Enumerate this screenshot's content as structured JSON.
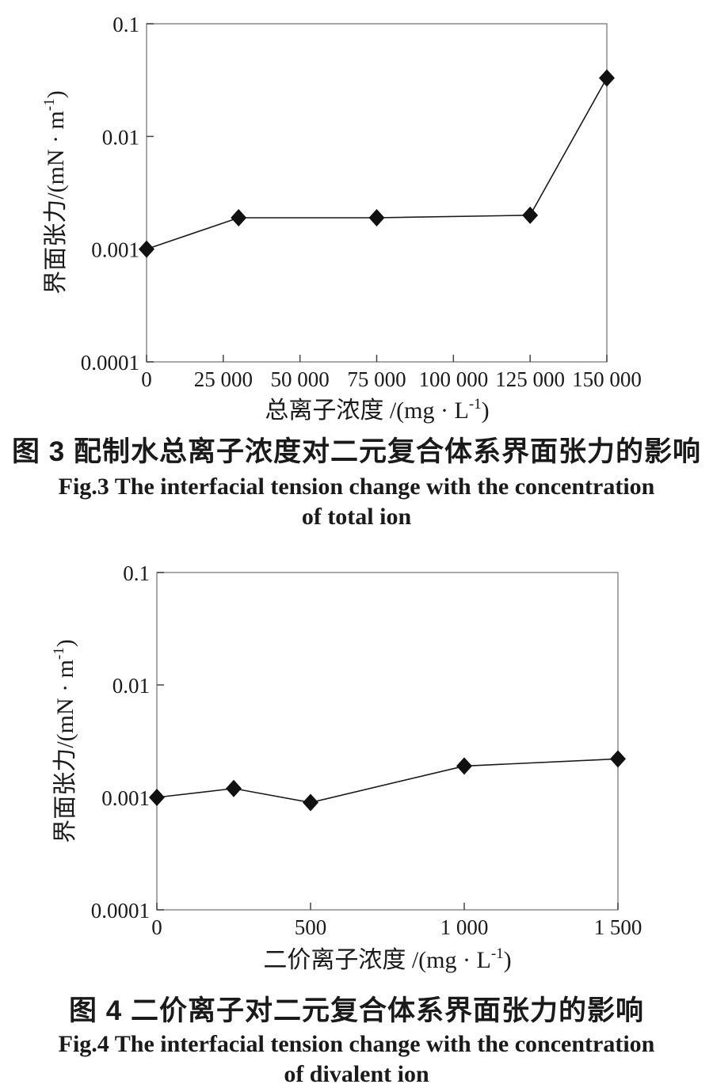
{
  "figure3": {
    "caption_zh": "图 3  配制水总离子浓度对二元复合体系界面张力的影响",
    "caption_en_line1": "Fig.3 The interfacial tension change with the concentration",
    "caption_en_line2": "of total ion"
  },
  "figure4": {
    "caption_zh": "图 4  二价离子对二元复合体系界面张力的影响",
    "caption_en_line1": "Fig.4 The interfacial tension change with the concentration",
    "caption_en_line2": "of divalent ion"
  },
  "chart_data": [
    {
      "type": "line",
      "title": "",
      "x": [
        0,
        30000,
        75000,
        125000,
        150000
      ],
      "y": [
        0.001,
        0.0019,
        0.0019,
        0.002,
        0.033
      ],
      "xlim": [
        0,
        150000
      ],
      "ylim": [
        0.0001,
        0.1
      ],
      "y_scale": "log",
      "x_tick_values": [
        0,
        25000,
        50000,
        75000,
        100000,
        125000,
        150000
      ],
      "x_tick_labels": [
        "0",
        "25 000",
        "50 000",
        "75 000",
        "100 000",
        "125 000",
        "150 000"
      ],
      "y_tick_values": [
        0.1,
        0.01,
        0.001,
        0.0001
      ],
      "y_tick_labels": [
        "0.1",
        "0.01",
        "0.001",
        "0.0001"
      ],
      "xlabel": {
        "pre": "总离子浓度 /(mg · L",
        "sup": "-1",
        "post": ")"
      },
      "ylabel": {
        "pre": "界面张力/(mN · m",
        "sup": "-1",
        "post": ")"
      },
      "marker": "diamond",
      "grid": false,
      "legend": "none",
      "line_color": "#1a1a1a",
      "marker_color": "#111111",
      "frame_color": "#8c8c8c"
    },
    {
      "type": "line",
      "title": "",
      "x": [
        0,
        250,
        500,
        1000,
        1500
      ],
      "y": [
        0.001,
        0.0012,
        0.0009,
        0.0019,
        0.0022
      ],
      "xlim": [
        0,
        1500
      ],
      "ylim": [
        0.0001,
        0.1
      ],
      "y_scale": "log",
      "x_tick_values": [
        0,
        500,
        1000,
        1500
      ],
      "x_tick_labels": [
        "0",
        "500",
        "1 000",
        "1 500"
      ],
      "y_tick_values": [
        0.1,
        0.01,
        0.001,
        0.0001
      ],
      "y_tick_labels": [
        "0.1",
        "0.01",
        "0.001",
        "0.0001"
      ],
      "xlabel": {
        "pre": "二价离子浓度 /(mg · L",
        "sup": "-1",
        "post": ")"
      },
      "ylabel": {
        "pre": "界面张力/(mN · m",
        "sup": "-1",
        "post": ")"
      },
      "marker": "diamond",
      "grid": false,
      "legend": "none",
      "line_color": "#1a1a1a",
      "marker_color": "#111111",
      "frame_color": "#8c8c8c"
    }
  ]
}
